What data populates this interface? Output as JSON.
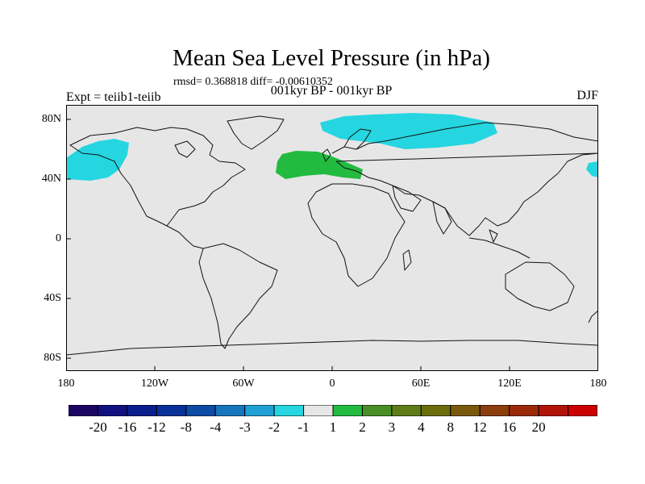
{
  "title": "Mean Sea Level Pressure (in hPa)",
  "stats": "rmsd= 0.368818 diff= -0.00610352",
  "subtitle": "001kyr BP - 001kyr BP",
  "expt": "Expt = teiib1-teiib",
  "season": "DJF",
  "lat_labels": [
    "80N",
    "40N",
    "0",
    "40S",
    "80S"
  ],
  "lon_labels": [
    "180",
    "120W",
    "60W",
    "0",
    "60E",
    "120E",
    "180"
  ],
  "colorbar": {
    "colors": [
      "#1c0563",
      "#11107f",
      "#0b1e8e",
      "#0a3198",
      "#0d4ba4",
      "#1675bd",
      "#1ea0d5",
      "#25d6e1",
      "#e6e6e6",
      "#22bb40",
      "#4a8f26",
      "#5f7c18",
      "#6b6d0d",
      "#7a580c",
      "#8b3d0c",
      "#9b2a0b",
      "#b21309",
      "#cc0000"
    ],
    "labels": [
      "-20",
      "-16",
      "-12",
      "-8",
      "-4",
      "-3",
      "-2",
      "-1",
      "1",
      "2",
      "3",
      "4",
      "8",
      "12",
      "16",
      "20"
    ]
  },
  "anomalies": [
    {
      "name": "north-pacific-low",
      "value_band": "-2 to -1",
      "color": "#25d6e1"
    },
    {
      "name": "arctic-low",
      "value_band": "-2 to -1",
      "color": "#25d6e1"
    },
    {
      "name": "european-high",
      "value_band": "1 to 2",
      "color": "#22bb40"
    }
  ]
}
